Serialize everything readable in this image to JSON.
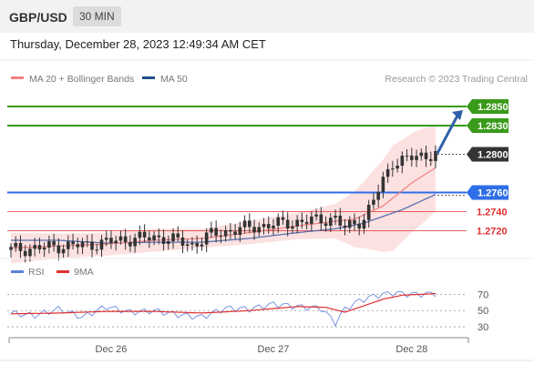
{
  "header": {
    "pair": "GBP/USD",
    "timeframe": "30 MIN",
    "datetime": "Thursday, December 28, 2023 12:49:34 AM CET"
  },
  "chart_data": {
    "type": "candlestick",
    "legend": [
      {
        "name": "MA 20 + Bollinger Bands",
        "color": "#f08080"
      },
      {
        "name": "MA 50",
        "color": "#1f4e8c"
      }
    ],
    "source_label": "Research © 2023 Trading Central",
    "price_axis": {
      "min": 1.269,
      "max": 1.287
    },
    "levels": [
      {
        "label": "1.2850",
        "value": 1.285,
        "kind": "target",
        "color": "#3a9a1a"
      },
      {
        "label": "1.2830",
        "value": 1.283,
        "kind": "target",
        "color": "#3a9a1a"
      },
      {
        "label": "1.2800",
        "value": 1.28,
        "kind": "pivot",
        "color": "#333333"
      },
      {
        "label": "1.2760",
        "value": 1.276,
        "kind": "pivot-line",
        "color": "#2f6ee6"
      },
      {
        "label": "1.2740",
        "value": 1.274,
        "kind": "support",
        "color": "#e03030"
      },
      {
        "label": "1.2720",
        "value": 1.272,
        "kind": "support",
        "color": "#e03030"
      }
    ],
    "rsi": {
      "legend": [
        {
          "name": "RSI",
          "color": "#5b7fd9"
        },
        {
          "name": "9MA",
          "color": "#e03030"
        }
      ],
      "ticks": [
        "70",
        "50",
        "30"
      ],
      "tick_values": [
        70,
        50,
        30
      ],
      "range": [
        20,
        85
      ]
    },
    "x_labels": [
      {
        "label": "Dec 26",
        "index": 21
      },
      {
        "label": "Dec 27",
        "index": 55
      },
      {
        "label": "Dec 28",
        "index": 84
      }
    ],
    "candle_count": 90,
    "price_path": [
      [
        0,
        1.27
      ],
      [
        6,
        1.2702
      ],
      [
        10,
        1.2704
      ],
      [
        16,
        1.2705
      ],
      [
        20,
        1.2708
      ],
      [
        26,
        1.2712
      ],
      [
        32,
        1.2713
      ],
      [
        38,
        1.2705
      ],
      [
        42,
        1.2716
      ],
      [
        48,
        1.2722
      ],
      [
        54,
        1.2726
      ],
      [
        62,
        1.273
      ],
      [
        68,
        1.2733
      ],
      [
        70,
        1.2722
      ],
      [
        74,
        1.2733
      ],
      [
        76,
        1.2752
      ],
      [
        78,
        1.2772
      ],
      [
        80,
        1.2792
      ],
      [
        86,
        1.2798
      ],
      [
        89,
        1.2801
      ]
    ],
    "ma20_path": [
      [
        0,
        1.2702
      ],
      [
        10,
        1.2704
      ],
      [
        20,
        1.2706
      ],
      [
        30,
        1.271
      ],
      [
        40,
        1.2712
      ],
      [
        50,
        1.2718
      ],
      [
        60,
        1.2725
      ],
      [
        68,
        1.273
      ],
      [
        72,
        1.2732
      ],
      [
        78,
        1.2746
      ],
      [
        84,
        1.277
      ],
      [
        89,
        1.2786
      ]
    ],
    "ma50_path": [
      [
        0,
        1.271
      ],
      [
        10,
        1.271
      ],
      [
        20,
        1.2707
      ],
      [
        30,
        1.2708
      ],
      [
        40,
        1.2708
      ],
      [
        50,
        1.2712
      ],
      [
        60,
        1.2718
      ],
      [
        68,
        1.2722
      ],
      [
        74,
        1.2728
      ],
      [
        82,
        1.2742
      ],
      [
        89,
        1.2758
      ]
    ],
    "band_width_path": [
      [
        0,
        1.2016
      ],
      [
        10,
        1.2013
      ],
      [
        20,
        1.2012
      ],
      [
        30,
        1.2012
      ],
      [
        40,
        1.201
      ],
      [
        50,
        1.2012
      ],
      [
        60,
        1.2014
      ],
      [
        68,
        1.2018
      ],
      [
        74,
        1.2035
      ],
      [
        80,
        1.2055
      ],
      [
        86,
        1.205
      ],
      [
        89,
        1.2045
      ]
    ],
    "rsi_path": [
      [
        0,
        47
      ],
      [
        5,
        44
      ],
      [
        10,
        52
      ],
      [
        15,
        42
      ],
      [
        20,
        55
      ],
      [
        25,
        48
      ],
      [
        30,
        50
      ],
      [
        35,
        45
      ],
      [
        40,
        42
      ],
      [
        45,
        53
      ],
      [
        50,
        52
      ],
      [
        55,
        58
      ],
      [
        60,
        55
      ],
      [
        65,
        53
      ],
      [
        68,
        35
      ],
      [
        70,
        52
      ],
      [
        73,
        62
      ],
      [
        76,
        68
      ],
      [
        80,
        72
      ],
      [
        84,
        70
      ],
      [
        89,
        71
      ]
    ],
    "rsi_ma_path": [
      [
        0,
        46
      ],
      [
        10,
        47
      ],
      [
        20,
        49
      ],
      [
        30,
        49
      ],
      [
        40,
        47
      ],
      [
        50,
        50
      ],
      [
        60,
        55
      ],
      [
        66,
        54
      ],
      [
        70,
        48
      ],
      [
        74,
        56
      ],
      [
        78,
        64
      ],
      [
        82,
        69
      ],
      [
        86,
        70
      ],
      [
        89,
        71
      ]
    ]
  }
}
